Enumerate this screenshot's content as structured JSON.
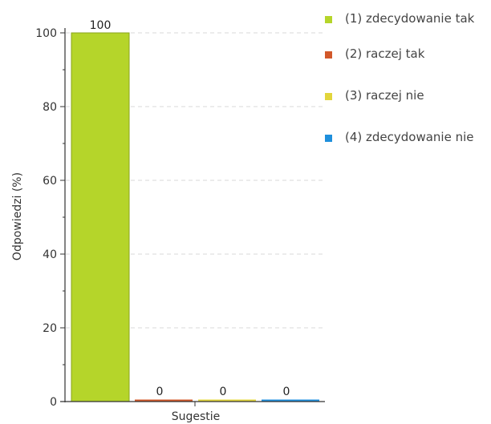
{
  "chart_data": {
    "type": "bar",
    "categories": [
      "Sugestie"
    ],
    "series": [
      {
        "name": "(1) zdecydowanie tak",
        "values": [
          100
        ],
        "color": "#b5d52a"
      },
      {
        "name": "(2) raczej tak",
        "values": [
          0
        ],
        "color": "#d2582a"
      },
      {
        "name": "(3) raczej nie",
        "values": [
          0
        ],
        "color": "#e2d53c"
      },
      {
        "name": "(4) zdecydowanie nie",
        "values": [
          0
        ],
        "color": "#1f8fdc"
      }
    ],
    "data_labels": [
      "100",
      "0",
      "0",
      "0"
    ],
    "xlabel": "Sugestie",
    "ylabel": "Odpowiedzi (%)",
    "ylim": [
      0,
      100
    ],
    "yticks": [
      0,
      20,
      40,
      60,
      80,
      100
    ],
    "grid": true,
    "legend_position": "right"
  },
  "legend": {
    "items": [
      {
        "label": "(1) zdecydowanie tak"
      },
      {
        "label": "(2) raczej tak"
      },
      {
        "label": "(3) raczej nie"
      },
      {
        "label": "(4) zdecydowanie nie"
      }
    ]
  }
}
